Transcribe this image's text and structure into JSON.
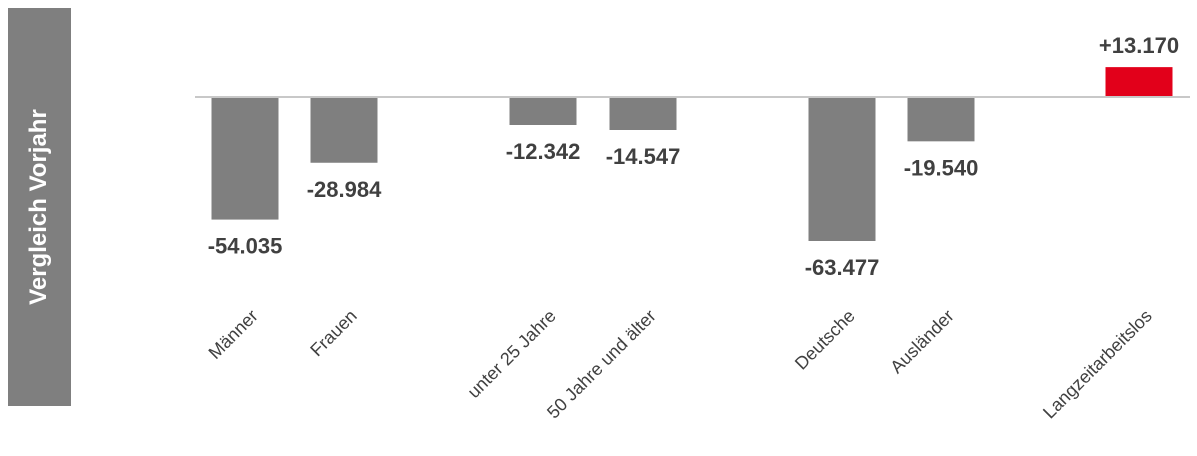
{
  "side_label": "Vergleich Vorjahr",
  "chart_data": {
    "type": "bar",
    "title": "",
    "xlabel": "",
    "ylabel": "",
    "categories": [
      "Männer",
      "Frauen",
      "unter 25 Jahre",
      "50 Jahre und älter",
      "Deutsche",
      "Ausländer",
      "Langzeitarbeitslos"
    ],
    "values": [
      -54035,
      -28984,
      -12342,
      -14547,
      -63477,
      -19540,
      13170
    ],
    "value_labels": [
      "-54.035",
      "-28.984",
      "-12.342",
      "-14.547",
      "-63.477",
      "-19.540",
      "+13.170"
    ],
    "ylim": [
      -70000,
      20000
    ],
    "grid": false,
    "colors": {
      "negative": "#7f7f7f",
      "positive": "#e2001a",
      "axis": "#c8c8c8",
      "label_box": "#7f7f7f"
    }
  }
}
